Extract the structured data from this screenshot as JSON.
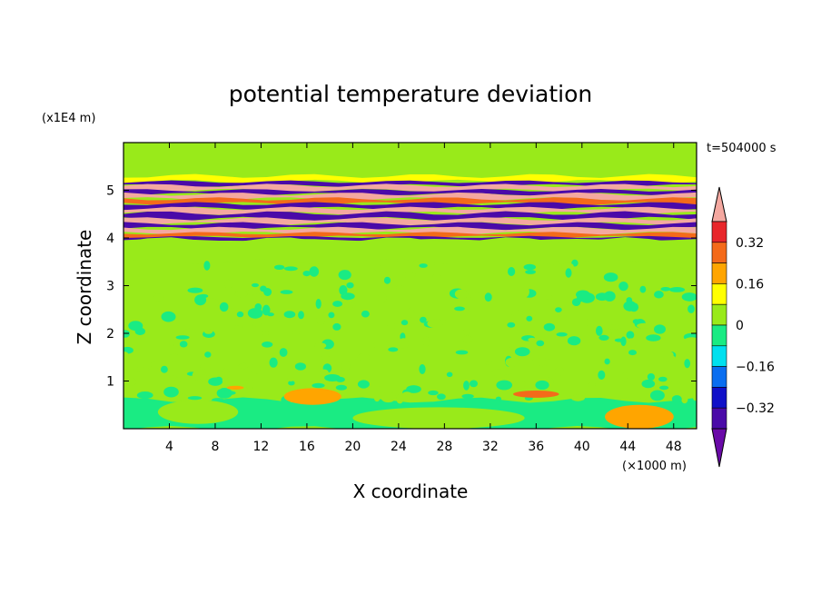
{
  "chart_data": {
    "type": "heatmap",
    "title": "potential temperature deviation",
    "xlabel": "X coordinate",
    "ylabel": "Z coordinate",
    "x_unit": "(×1000 m)",
    "y_unit": "(x1E4 m)",
    "time_label": "t=504000 s",
    "xlim": [
      0,
      50
    ],
    "ylim": [
      0,
      6
    ],
    "x_ticks": [
      4,
      8,
      12,
      16,
      20,
      24,
      28,
      32,
      36,
      40,
      44,
      48
    ],
    "y_ticks": [
      1,
      2,
      3,
      4,
      5
    ],
    "grid": false,
    "legend": {
      "placement": "right",
      "type": "colorbar",
      "labels": [
        "0.32",
        "0.16",
        "0",
        "-0.16",
        "-0.32"
      ],
      "levels": [
        {
          "upper": "overflow",
          "color": "#f4a8a0"
        },
        {
          "upper": 0.4,
          "color": "#e8262a"
        },
        {
          "upper": 0.32,
          "color": "#f46a1a"
        },
        {
          "upper": 0.24,
          "color": "#ffa500"
        },
        {
          "upper": 0.16,
          "color": "#ffff00"
        },
        {
          "upper": 0.08,
          "color": "#99ea1a"
        },
        {
          "upper": 0.0,
          "color": "#1aeb83"
        },
        {
          "upper": -0.08,
          "color": "#00e0ef"
        },
        {
          "upper": -0.16,
          "color": "#0a6ef0"
        },
        {
          "upper": -0.24,
          "color": "#1010c8"
        },
        {
          "upper": -0.32,
          "color": "#4a0aa8"
        },
        {
          "upper": "underflow",
          "color": "#6a0aa8"
        }
      ]
    },
    "regions": [
      {
        "z_range": [
          0,
          4
        ],
        "description_values": "small perturbations mostly between -0.08 and 0.08, with weak warm spots near the surface"
      },
      {
        "z_range": [
          4,
          5.3
        ],
        "description_values": "strong alternating layers beyond ±0.4"
      },
      {
        "z_range": [
          5.3,
          6
        ],
        "description_values": "near zero"
      }
    ],
    "bands": [
      {
        "z": [
          5.3,
          6.0
        ],
        "v": 0.05
      },
      {
        "z": [
          5.18,
          5.3
        ],
        "v": 0.1
      },
      {
        "z": [
          5.1,
          5.18
        ],
        "v": -0.45
      },
      {
        "z": [
          5.0,
          5.1
        ],
        "v": 0.45
      },
      {
        "z": [
          4.92,
          5.0
        ],
        "v": -0.45
      },
      {
        "z": [
          4.82,
          4.92
        ],
        "v": 0.45
      },
      {
        "z": [
          4.72,
          4.82
        ],
        "v": 0.28
      },
      {
        "z": [
          4.62,
          4.72
        ],
        "v": -0.45
      },
      {
        "z": [
          4.52,
          4.62
        ],
        "v": 0.45
      },
      {
        "z": [
          4.4,
          4.52
        ],
        "v": -0.45
      },
      {
        "z": [
          4.3,
          4.4
        ],
        "v": 0.45
      },
      {
        "z": [
          4.2,
          4.3
        ],
        "v": -0.45
      },
      {
        "z": [
          4.1,
          4.2
        ],
        "v": 0.45
      },
      {
        "z": [
          4.02,
          4.1
        ],
        "v": 0.3
      },
      {
        "z": [
          3.96,
          4.02
        ],
        "v": -0.45
      },
      {
        "z": [
          3.5,
          3.96
        ],
        "v": 0.05
      },
      {
        "z": [
          0.6,
          3.5
        ],
        "v": 0.03
      },
      {
        "z": [
          0.0,
          0.6
        ],
        "v": -0.03
      }
    ],
    "patches": [
      {
        "x": [
          3,
          10
        ],
        "z": [
          0.1,
          0.6
        ],
        "v": 0.05
      },
      {
        "x": [
          14,
          19
        ],
        "z": [
          0.5,
          0.85
        ],
        "v": 0.2
      },
      {
        "x": [
          34,
          38
        ],
        "z": [
          0.65,
          0.8
        ],
        "v": 0.28
      },
      {
        "x": [
          42,
          48
        ],
        "z": [
          0.0,
          0.5
        ],
        "v": 0.18
      },
      {
        "x": [
          9,
          10.5
        ],
        "z": [
          0.82,
          0.9
        ],
        "v": 0.18
      },
      {
        "x": [
          20,
          35
        ],
        "z": [
          0.0,
          0.45
        ],
        "v": 0.05
      }
    ]
  }
}
